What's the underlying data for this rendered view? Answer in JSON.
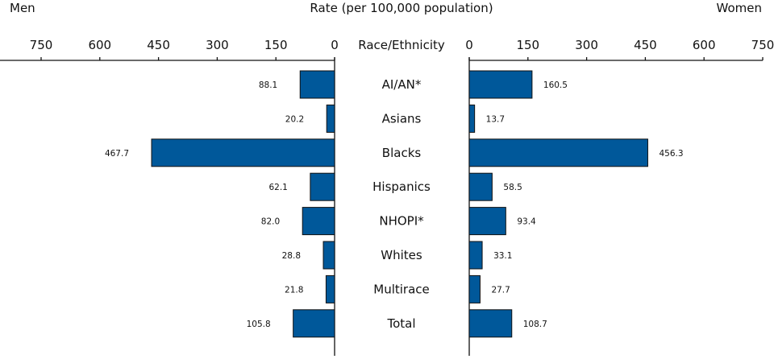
{
  "chart_data": {
    "type": "bar",
    "orientation": "horizontal-butterfly",
    "title": "Rate (per 100,000 population)",
    "category_header": "Race/Ethnicity",
    "categories": [
      "AI/AN*",
      "Asians",
      "Blacks",
      "Hispanics",
      "NHOPI*",
      "Whites",
      "Multirace",
      "Total"
    ],
    "series": [
      {
        "name": "Men",
        "values": [
          88.1,
          20.2,
          467.7,
          62.1,
          82.0,
          28.8,
          21.8,
          105.8
        ],
        "labels": [
          "88.1",
          "20.2",
          "467.7",
          "62.1",
          "82.0",
          "28.8",
          "21.8",
          "105.8"
        ]
      },
      {
        "name": "Women",
        "values": [
          160.5,
          13.7,
          456.3,
          58.5,
          93.4,
          33.1,
          27.7,
          108.7
        ],
        "labels": [
          "160.5",
          "13.7",
          "456.3",
          "58.5",
          "93.4",
          "33.1",
          "27.7",
          "108.7"
        ]
      }
    ],
    "xlim": [
      0,
      750
    ],
    "ticks": [
      "0",
      "150",
      "300",
      "450",
      "600",
      "750"
    ],
    "tick_values": [
      0,
      150,
      300,
      450,
      600,
      750
    ],
    "grid": false,
    "bar_color": "#00589a"
  }
}
